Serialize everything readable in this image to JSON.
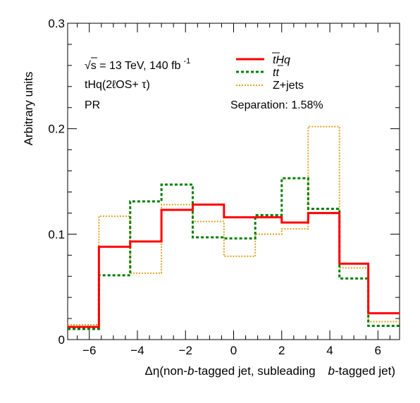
{
  "chart_data": {
    "type": "step-histogram",
    "bin_edges": [
      -6.9,
      -5.6,
      -4.3,
      -3.0,
      -1.7,
      -0.4,
      0.9,
      2.0,
      3.1,
      4.4,
      5.6,
      6.9
    ],
    "series": [
      {
        "name": "tHq",
        "color": "#ff0000",
        "style": "solid",
        "values": [
          0.012,
          0.088,
          0.093,
          0.123,
          0.128,
          0.116,
          0.116,
          0.111,
          0.12,
          0.072,
          0.025
        ]
      },
      {
        "name": "tt",
        "color": "#007f00",
        "style": "dashed",
        "values": [
          0.01,
          0.061,
          0.131,
          0.147,
          0.097,
          0.096,
          0.118,
          0.153,
          0.124,
          0.058,
          0.013
        ]
      },
      {
        "name": "Z+jets",
        "color": "#e0a020",
        "style": "dotted",
        "values": [
          0.014,
          0.117,
          0.063,
          0.128,
          0.112,
          0.079,
          0.1,
          0.105,
          0.202,
          0.068,
          0.017
        ]
      }
    ],
    "xlim": [
      -6.9,
      6.9
    ],
    "ylim": [
      0,
      0.3
    ],
    "x_ticks": [
      -6,
      -4,
      -2,
      0,
      2,
      4,
      6
    ],
    "y_ticks": [
      0,
      0.1,
      0.2,
      0.3
    ],
    "y_tick_labels": [
      "0",
      "0.1",
      "0.2",
      "0.3"
    ],
    "ylabel": "Arbitrary units",
    "xlabel": {
      "p1": "Δη(non-",
      "p2": "b",
      "p3": "-tagged jet, subleading",
      "p4": "b",
      "p5": "-tagged jet)"
    },
    "annotations": {
      "energy_sqrt": "√",
      "energy_s": "s",
      "energy_text": " = 13 TeV, 140 fb",
      "energy_sup": "-1",
      "channel": "tHq(2ℓOS+ τ)",
      "region": "PR",
      "separation": "Separation: 1.58%"
    },
    "legend": {
      "placement": "top-right",
      "entries": [
        {
          "series": 0,
          "label_main": "tHq"
        },
        {
          "series": 1,
          "label_main": "tt"
        },
        {
          "series": 2,
          "label_main": "Z+jets"
        }
      ]
    }
  }
}
